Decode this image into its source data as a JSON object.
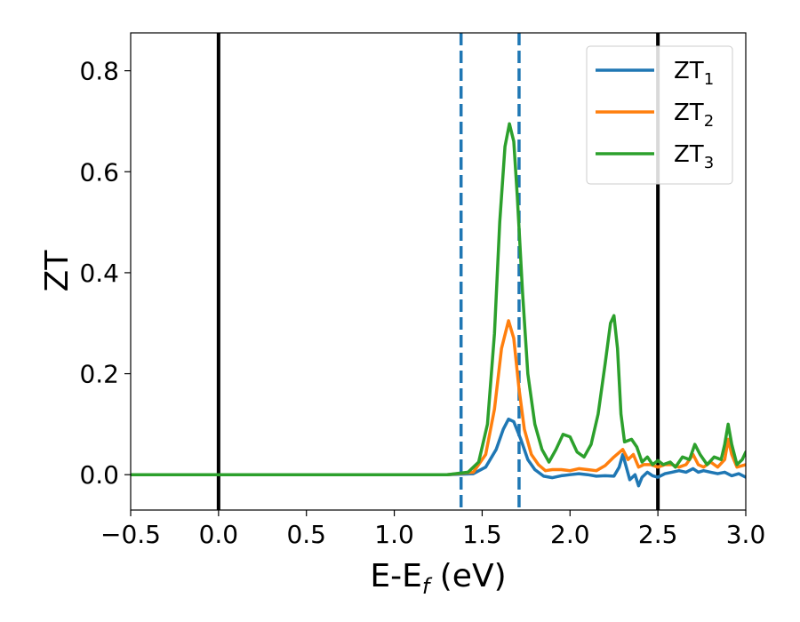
{
  "chart_data": {
    "type": "line",
    "title": "",
    "xlabel": {
      "main": "E-E",
      "sub": "f",
      "suffix": " (eV)"
    },
    "ylabel": "ZT",
    "xlim": [
      -0.5,
      3.0
    ],
    "ylim": [
      -0.07,
      0.875
    ],
    "x_ticks": [
      -0.5,
      0.0,
      0.5,
      1.0,
      1.5,
      2.0,
      2.5,
      3.0
    ],
    "x_tick_labels": [
      "−0.5",
      "0.0",
      "0.5",
      "1.0",
      "1.5",
      "2.0",
      "2.5",
      "3.0"
    ],
    "y_ticks": [
      0.0,
      0.2,
      0.4,
      0.6,
      0.8
    ],
    "y_tick_labels": [
      "0.0",
      "0.2",
      "0.4",
      "0.6",
      "0.8"
    ],
    "grid": false,
    "legend_position": "top-right",
    "vertical_lines": [
      {
        "x": 0.0,
        "style": "solid",
        "color": "#000000"
      },
      {
        "x": 2.5,
        "style": "solid",
        "color": "#000000"
      },
      {
        "x": 1.38,
        "style": "dashed",
        "color": "#1f77b4"
      },
      {
        "x": 1.71,
        "style": "dashed",
        "color": "#1f77b4"
      }
    ],
    "series": [
      {
        "name": "ZT",
        "name_sub": "1",
        "color": "#1f77b4",
        "points": [
          [
            -0.5,
            0
          ],
          [
            1.3,
            0
          ],
          [
            1.45,
            0.002
          ],
          [
            1.52,
            0.015
          ],
          [
            1.58,
            0.05
          ],
          [
            1.62,
            0.09
          ],
          [
            1.65,
            0.11
          ],
          [
            1.68,
            0.105
          ],
          [
            1.72,
            0.07
          ],
          [
            1.76,
            0.03
          ],
          [
            1.8,
            0.01
          ],
          [
            1.85,
            -0.003
          ],
          [
            1.9,
            -0.006
          ],
          [
            1.95,
            -0.002
          ],
          [
            2.0,
            0.0
          ],
          [
            2.05,
            0.002
          ],
          [
            2.1,
            0.0
          ],
          [
            2.15,
            -0.003
          ],
          [
            2.2,
            -0.002
          ],
          [
            2.25,
            -0.003
          ],
          [
            2.28,
            0.015
          ],
          [
            2.3,
            0.04
          ],
          [
            2.32,
            0.015
          ],
          [
            2.34,
            -0.01
          ],
          [
            2.37,
            0.0
          ],
          [
            2.39,
            -0.022
          ],
          [
            2.41,
            -0.005
          ],
          [
            2.44,
            0.005
          ],
          [
            2.47,
            -0.002
          ],
          [
            2.5,
            -0.005
          ],
          [
            2.54,
            0.002
          ],
          [
            2.58,
            0.005
          ],
          [
            2.62,
            0.008
          ],
          [
            2.66,
            0.005
          ],
          [
            2.7,
            0.012
          ],
          [
            2.73,
            0.005
          ],
          [
            2.76,
            0.008
          ],
          [
            2.8,
            0.005
          ],
          [
            2.84,
            0.002
          ],
          [
            2.88,
            0.005
          ],
          [
            2.92,
            -0.002
          ],
          [
            2.96,
            0.002
          ],
          [
            3.0,
            -0.005
          ]
        ]
      },
      {
        "name": "ZT",
        "name_sub": "2",
        "color": "#ff7f0e",
        "points": [
          [
            -0.5,
            0
          ],
          [
            1.3,
            0
          ],
          [
            1.45,
            0.005
          ],
          [
            1.52,
            0.04
          ],
          [
            1.57,
            0.13
          ],
          [
            1.61,
            0.25
          ],
          [
            1.65,
            0.305
          ],
          [
            1.68,
            0.27
          ],
          [
            1.71,
            0.17
          ],
          [
            1.74,
            0.09
          ],
          [
            1.78,
            0.04
          ],
          [
            1.82,
            0.02
          ],
          [
            1.86,
            0.008
          ],
          [
            1.9,
            0.01
          ],
          [
            1.95,
            0.01
          ],
          [
            2.0,
            0.008
          ],
          [
            2.05,
            0.012
          ],
          [
            2.1,
            0.01
          ],
          [
            2.15,
            0.008
          ],
          [
            2.2,
            0.018
          ],
          [
            2.25,
            0.035
          ],
          [
            2.3,
            0.05
          ],
          [
            2.33,
            0.03
          ],
          [
            2.36,
            0.04
          ],
          [
            2.39,
            0.015
          ],
          [
            2.42,
            0.02
          ],
          [
            2.46,
            0.02
          ],
          [
            2.5,
            0.015
          ],
          [
            2.54,
            0.02
          ],
          [
            2.58,
            0.02
          ],
          [
            2.62,
            0.015
          ],
          [
            2.66,
            0.02
          ],
          [
            2.7,
            0.04
          ],
          [
            2.73,
            0.02
          ],
          [
            2.76,
            0.015
          ],
          [
            2.8,
            0.025
          ],
          [
            2.84,
            0.015
          ],
          [
            2.88,
            0.03
          ],
          [
            2.9,
            0.07
          ],
          [
            2.92,
            0.04
          ],
          [
            2.95,
            0.015
          ],
          [
            3.0,
            0.02
          ]
        ]
      },
      {
        "name": "ZT",
        "name_sub": "3",
        "color": "#2ca02c",
        "points": [
          [
            -0.5,
            0
          ],
          [
            1.3,
            0
          ],
          [
            1.42,
            0.005
          ],
          [
            1.48,
            0.025
          ],
          [
            1.53,
            0.1
          ],
          [
            1.57,
            0.28
          ],
          [
            1.6,
            0.5
          ],
          [
            1.63,
            0.65
          ],
          [
            1.655,
            0.695
          ],
          [
            1.68,
            0.66
          ],
          [
            1.7,
            0.55
          ],
          [
            1.73,
            0.36
          ],
          [
            1.76,
            0.2
          ],
          [
            1.8,
            0.1
          ],
          [
            1.84,
            0.05
          ],
          [
            1.88,
            0.025
          ],
          [
            1.92,
            0.05
          ],
          [
            1.96,
            0.08
          ],
          [
            2.0,
            0.075
          ],
          [
            2.04,
            0.045
          ],
          [
            2.08,
            0.035
          ],
          [
            2.12,
            0.06
          ],
          [
            2.16,
            0.12
          ],
          [
            2.2,
            0.22
          ],
          [
            2.23,
            0.3
          ],
          [
            2.25,
            0.315
          ],
          [
            2.27,
            0.25
          ],
          [
            2.29,
            0.12
          ],
          [
            2.31,
            0.065
          ],
          [
            2.35,
            0.07
          ],
          [
            2.38,
            0.055
          ],
          [
            2.41,
            0.025
          ],
          [
            2.44,
            0.035
          ],
          [
            2.47,
            0.02
          ],
          [
            2.5,
            0.028
          ],
          [
            2.53,
            0.02
          ],
          [
            2.57,
            0.025
          ],
          [
            2.6,
            0.015
          ],
          [
            2.64,
            0.035
          ],
          [
            2.68,
            0.03
          ],
          [
            2.71,
            0.06
          ],
          [
            2.74,
            0.04
          ],
          [
            2.78,
            0.02
          ],
          [
            2.82,
            0.035
          ],
          [
            2.86,
            0.03
          ],
          [
            2.88,
            0.06
          ],
          [
            2.9,
            0.1
          ],
          [
            2.92,
            0.06
          ],
          [
            2.95,
            0.02
          ],
          [
            2.98,
            0.03
          ],
          [
            3.0,
            0.045
          ]
        ]
      }
    ]
  }
}
